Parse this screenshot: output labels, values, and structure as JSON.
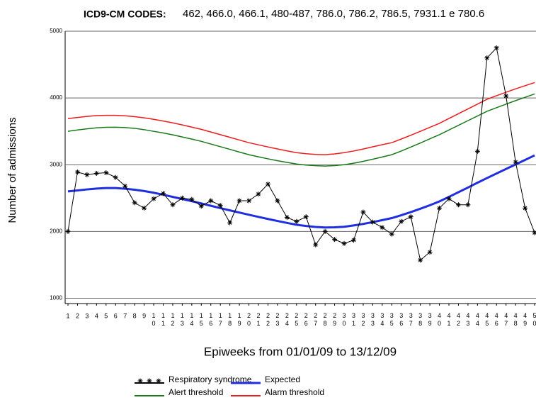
{
  "chart_data": {
    "type": "line",
    "title": "ICD9-CM CODES:",
    "subtitle": "462, 466.0, 466.1, 480-487, 786.0, 786.2, 786.5, 7931.1 e 780.6",
    "x_label": "Epiweeks from 01/01/09 to 13/12/09",
    "y_label": "Number of admissions",
    "categories": [
      "1",
      "2",
      "3",
      "4",
      "5",
      "6",
      "7",
      "8",
      "9",
      "10",
      "11",
      "12",
      "13",
      "14",
      "15",
      "16",
      "17",
      "18",
      "19",
      "20",
      "21",
      "22",
      "23",
      "24",
      "25",
      "26",
      "27",
      "28",
      "29",
      "30",
      "31",
      "32",
      "33",
      "34",
      "35",
      "36",
      "37",
      "38",
      "39",
      "40",
      "41",
      "42",
      "43",
      "44",
      "45",
      "46",
      "47",
      "48",
      "49",
      "50"
    ],
    "ylim": [
      920,
      5000
    ],
    "yticks": [
      1000,
      2000,
      3000,
      4000,
      5000
    ],
    "grid": true,
    "legend": "bottom",
    "series": [
      {
        "name": "Respiratory syndrome",
        "color": "#000000",
        "marker": "asterisk",
        "values": [
          2000,
          2890,
          2850,
          2870,
          2880,
          2810,
          2680,
          2430,
          2350,
          2490,
          2570,
          2400,
          2500,
          2480,
          2380,
          2460,
          2390,
          2130,
          2460,
          2460,
          2560,
          2710,
          2460,
          2210,
          2150,
          2220,
          1800,
          2000,
          1880,
          1820,
          1870,
          2290,
          2140,
          2060,
          1960,
          2150,
          2220,
          1570,
          1690,
          2350,
          2490,
          2400,
          2400,
          3200,
          4600,
          4750,
          4030,
          3040,
          2350,
          1980
        ]
      },
      {
        "name": "Expected",
        "color": "#1f2fe0",
        "values": [
          2600,
          2615,
          2630,
          2642,
          2650,
          2650,
          2640,
          2625,
          2605,
          2580,
          2550,
          2518,
          2486,
          2453,
          2420,
          2385,
          2350,
          2316,
          2283,
          2250,
          2218,
          2187,
          2157,
          2128,
          2100,
          2082,
          2068,
          2060,
          2062,
          2070,
          2090,
          2113,
          2140,
          2170,
          2200,
          2243,
          2290,
          2340,
          2393,
          2450,
          2518,
          2588,
          2658,
          2730,
          2800,
          2868,
          2936,
          3004,
          3072,
          3140
        ]
      },
      {
        "name": "Alert threshold",
        "color": "#1a7a1a",
        "values": [
          3500,
          3520,
          3538,
          3552,
          3560,
          3562,
          3556,
          3545,
          3525,
          3500,
          3475,
          3447,
          3416,
          3384,
          3350,
          3310,
          3270,
          3230,
          3190,
          3150,
          3118,
          3088,
          3060,
          3034,
          3010,
          2995,
          2985,
          2980,
          2986,
          3000,
          3022,
          3050,
          3082,
          3115,
          3150,
          3205,
          3265,
          3325,
          3388,
          3450,
          3520,
          3590,
          3660,
          3730,
          3800,
          3855,
          3908,
          3960,
          4010,
          4060
        ]
      },
      {
        "name": "Alarm threshold",
        "color": "#ee1c1c",
        "values": [
          3690,
          3708,
          3724,
          3735,
          3740,
          3740,
          3733,
          3720,
          3702,
          3680,
          3655,
          3627,
          3596,
          3563,
          3530,
          3490,
          3450,
          3410,
          3370,
          3330,
          3298,
          3266,
          3236,
          3207,
          3180,
          3164,
          3154,
          3150,
          3162,
          3180,
          3205,
          3235,
          3268,
          3300,
          3330,
          3385,
          3442,
          3500,
          3560,
          3620,
          3692,
          3764,
          3836,
          3908,
          3980,
          4034,
          4086,
          4136,
          4184,
          4230
        ]
      }
    ]
  }
}
